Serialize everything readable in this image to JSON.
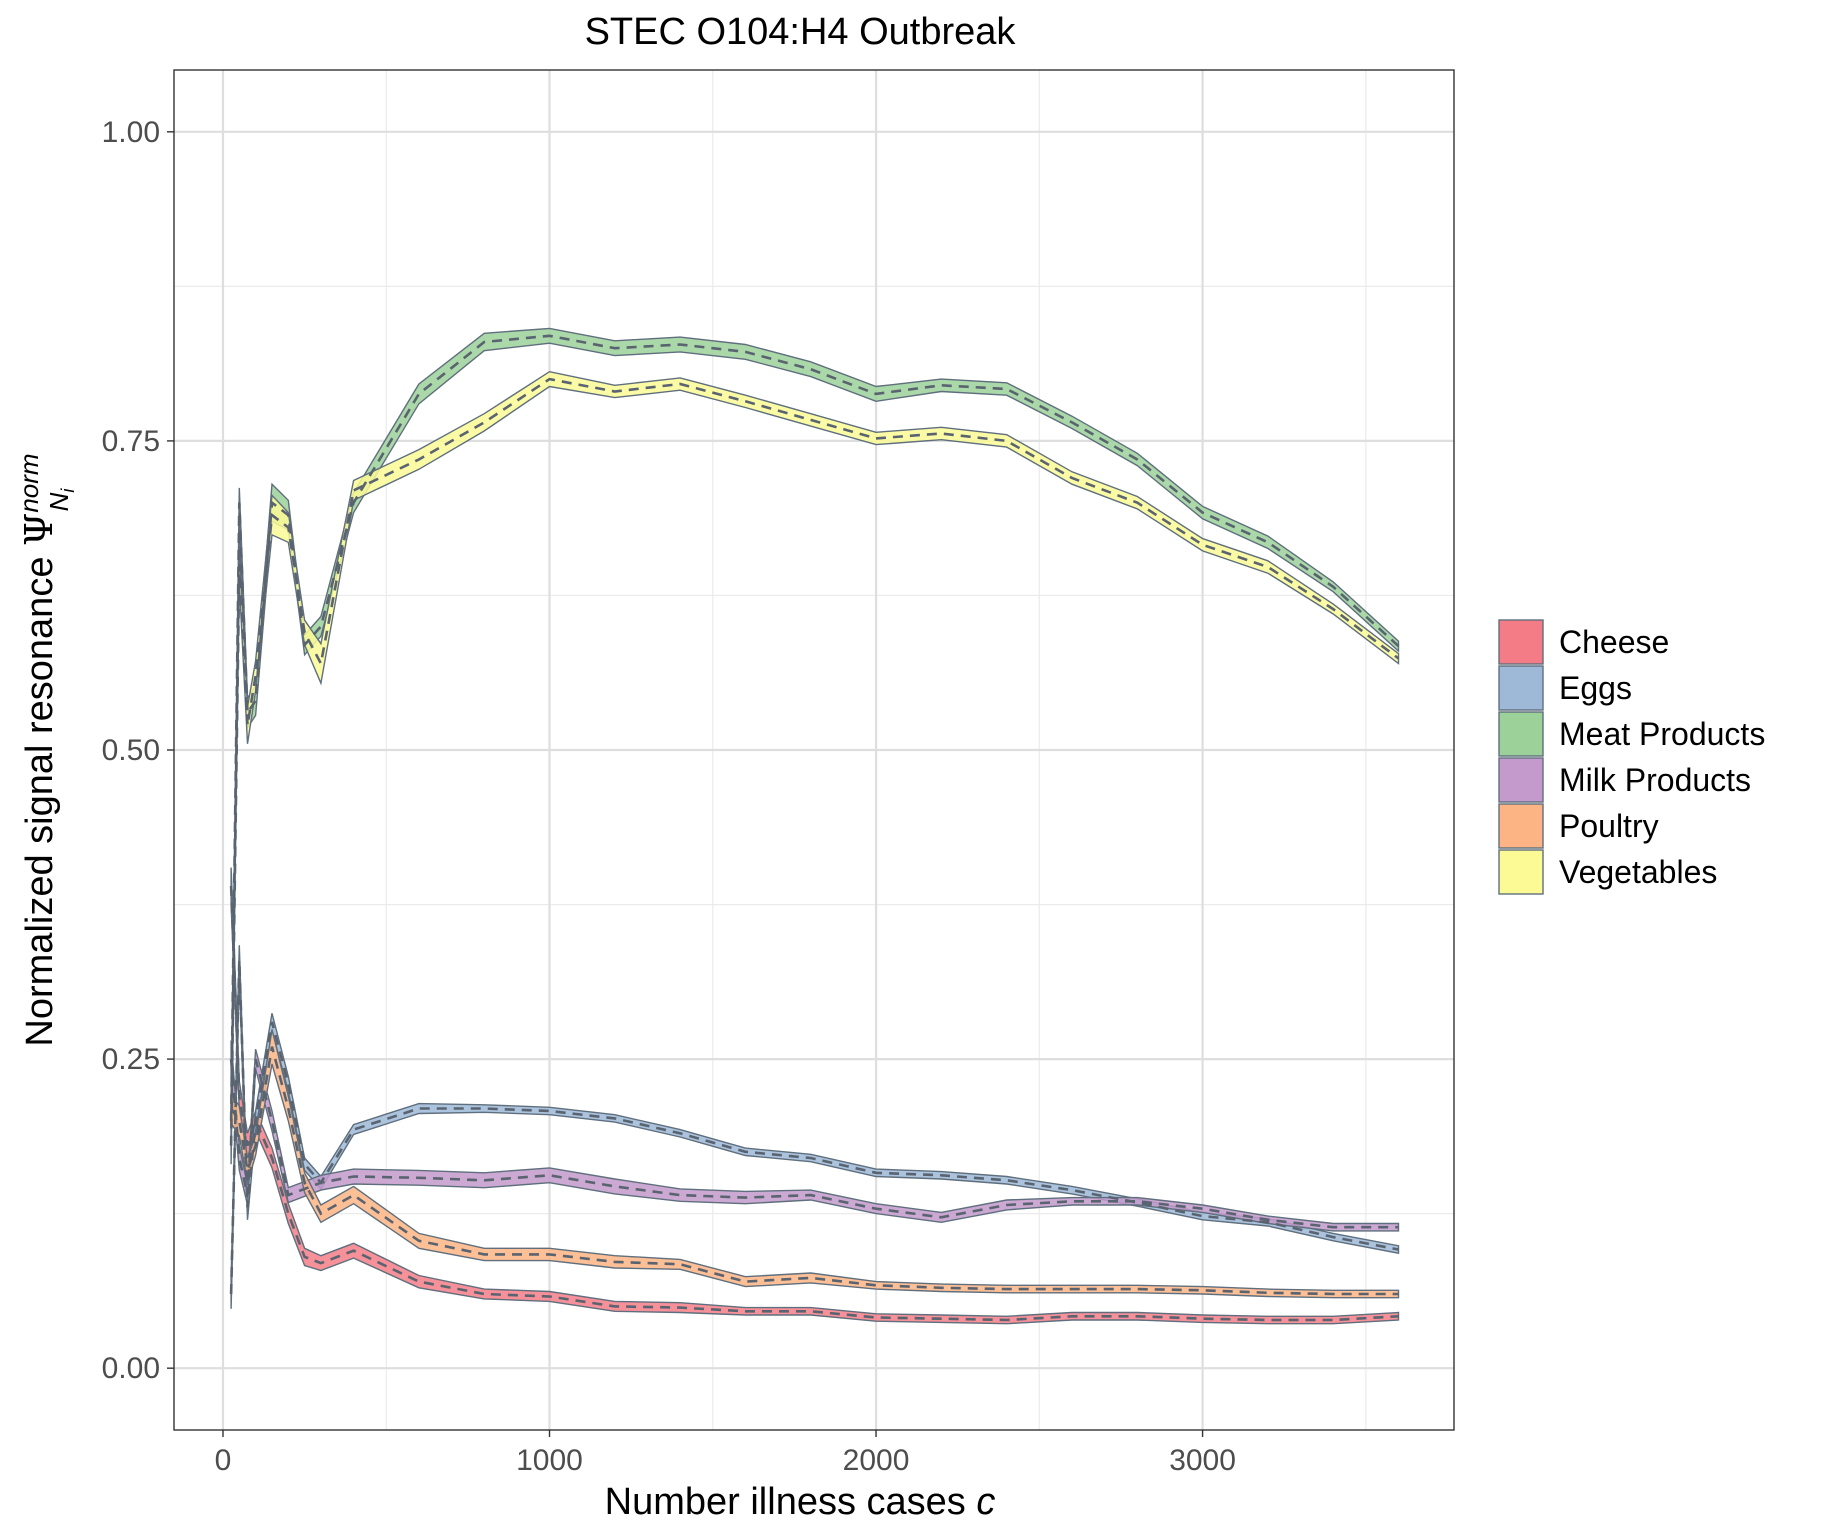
{
  "chart_data": {
    "type": "area",
    "title": "STEC O104:H4 Outbreak",
    "xlabel": {
      "main": "Number illness cases ",
      "italic": "c"
    },
    "ylabel": {
      "main": "Normalized signal resonance ",
      "symbol": "Ψ",
      "superscript": "norm",
      "subscript": "N",
      "subsub": "i"
    },
    "xlim": [
      -150,
      3770
    ],
    "ylim": [
      -0.05,
      1.05
    ],
    "x_ticks": [
      0,
      1000,
      2000,
      3000
    ],
    "x_tick_labels": [
      "0",
      "1000",
      "2000",
      "3000"
    ],
    "y_ticks": [
      0,
      0.25,
      0.5,
      0.75,
      1.0
    ],
    "y_tick_labels": [
      "0.00",
      "0.25",
      "0.50",
      "0.75",
      "1.00"
    ],
    "grid": true,
    "legend_position": "right",
    "x": [
      25,
      50,
      75,
      100,
      150,
      200,
      250,
      300,
      400,
      600,
      800,
      1000,
      1200,
      1400,
      1600,
      1800,
      2000,
      2200,
      2400,
      2600,
      2800,
      3000,
      3200,
      3400,
      3600
    ],
    "series": [
      {
        "name": "Cheese",
        "color": "#F47C87",
        "values": [
          0.39,
          0.22,
          0.18,
          0.2,
          0.17,
          0.125,
          0.09,
          0.085,
          0.095,
          0.07,
          0.06,
          0.058,
          0.05,
          0.049,
          0.046,
          0.046,
          0.041,
          0.04,
          0.039,
          0.042,
          0.042,
          0.04,
          0.039,
          0.039,
          0.042
        ],
        "band": [
          0.015,
          0.012,
          0.01,
          0.008,
          0.008,
          0.008,
          0.007,
          0.006,
          0.006,
          0.005,
          0.004,
          0.004,
          0.004,
          0.004,
          0.003,
          0.003,
          0.003,
          0.003,
          0.003,
          0.003,
          0.003,
          0.003,
          0.003,
          0.003,
          0.003
        ]
      },
      {
        "name": "Eggs",
        "color": "#9EB9D8",
        "values": [
          0.06,
          0.33,
          0.13,
          0.2,
          0.28,
          0.23,
          0.165,
          0.15,
          0.193,
          0.21,
          0.21,
          0.208,
          0.202,
          0.19,
          0.175,
          0.17,
          0.158,
          0.156,
          0.152,
          0.144,
          0.134,
          0.123,
          0.118,
          0.106,
          0.096
        ],
        "band": [
          0.012,
          0.012,
          0.01,
          0.008,
          0.007,
          0.006,
          0.005,
          0.005,
          0.004,
          0.004,
          0.003,
          0.003,
          0.003,
          0.003,
          0.003,
          0.003,
          0.003,
          0.003,
          0.003,
          0.003,
          0.003,
          0.003,
          0.003,
          0.003,
          0.003
        ]
      },
      {
        "name": "Meat Products",
        "color": "#9CD19A",
        "values": [
          0.2,
          0.7,
          0.53,
          0.54,
          0.7,
          0.69,
          0.585,
          0.6,
          0.7,
          0.788,
          0.83,
          0.835,
          0.825,
          0.828,
          0.822,
          0.808,
          0.788,
          0.795,
          0.792,
          0.765,
          0.735,
          0.692,
          0.668,
          0.632,
          0.584
        ],
        "band": [
          0.015,
          0.012,
          0.012,
          0.012,
          0.015,
          0.012,
          0.008,
          0.008,
          0.008,
          0.008,
          0.007,
          0.006,
          0.006,
          0.006,
          0.006,
          0.006,
          0.006,
          0.005,
          0.005,
          0.005,
          0.005,
          0.005,
          0.005,
          0.004,
          0.004
        ]
      },
      {
        "name": "Milk Products",
        "color": "#C39ACB",
        "values": [
          0.25,
          0.17,
          0.14,
          0.25,
          0.2,
          0.14,
          0.145,
          0.15,
          0.155,
          0.154,
          0.152,
          0.156,
          0.147,
          0.14,
          0.138,
          0.14,
          0.129,
          0.122,
          0.132,
          0.135,
          0.135,
          0.129,
          0.12,
          0.114,
          0.114
        ],
        "band": [
          0.015,
          0.01,
          0.008,
          0.008,
          0.008,
          0.006,
          0.006,
          0.006,
          0.006,
          0.006,
          0.006,
          0.006,
          0.006,
          0.005,
          0.005,
          0.004,
          0.004,
          0.004,
          0.004,
          0.003,
          0.003,
          0.003,
          0.003,
          0.003,
          0.003
        ]
      },
      {
        "name": "Poultry",
        "color": "#FDB484",
        "values": [
          0.21,
          0.2,
          0.16,
          0.18,
          0.26,
          0.21,
          0.15,
          0.125,
          0.14,
          0.103,
          0.092,
          0.092,
          0.086,
          0.084,
          0.07,
          0.073,
          0.067,
          0.065,
          0.064,
          0.064,
          0.064,
          0.063,
          0.061,
          0.06,
          0.06
        ],
        "band": [
          0.012,
          0.012,
          0.01,
          0.008,
          0.014,
          0.01,
          0.008,
          0.007,
          0.007,
          0.006,
          0.005,
          0.005,
          0.005,
          0.004,
          0.004,
          0.004,
          0.003,
          0.003,
          0.003,
          0.003,
          0.003,
          0.003,
          0.003,
          0.003,
          0.003
        ]
      },
      {
        "name": "Vegetables",
        "color": "#FCFA95",
        "values": [
          0.18,
          0.65,
          0.52,
          0.56,
          0.69,
          0.68,
          0.595,
          0.57,
          0.71,
          0.735,
          0.765,
          0.8,
          0.79,
          0.796,
          0.782,
          0.767,
          0.752,
          0.756,
          0.75,
          0.72,
          0.7,
          0.666,
          0.648,
          0.614,
          0.574
        ],
        "band": [
          0.015,
          0.015,
          0.015,
          0.012,
          0.016,
          0.012,
          0.01,
          0.016,
          0.008,
          0.008,
          0.007,
          0.006,
          0.005,
          0.005,
          0.005,
          0.005,
          0.005,
          0.005,
          0.005,
          0.005,
          0.005,
          0.005,
          0.005,
          0.004,
          0.004
        ]
      }
    ]
  }
}
